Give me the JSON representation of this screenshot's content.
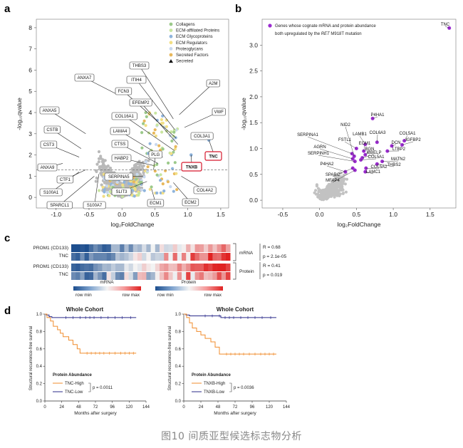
{
  "caption": "图10 间质亚型候选标志物分析",
  "panels": {
    "a": {
      "label": "a",
      "xlabel": "log₂FoldChange",
      "ylabel": "-log₁₀qvalue",
      "xticks": [
        "-1.0",
        "-0.5",
        "0.0",
        "0.5",
        "1.0",
        "1.5"
      ],
      "yticks": [
        "0",
        "1",
        "2",
        "3",
        "4",
        "5",
        "6",
        "7",
        "8"
      ],
      "legend": [
        {
          "label": "Collagens",
          "color": "#9bc98a"
        },
        {
          "label": "ECM-affiliated Proteins",
          "color": "#c9e6a0"
        },
        {
          "label": "ECM Glycoproteins",
          "color": "#8fb4dc"
        },
        {
          "label": "ECM Regulators",
          "color": "#f2df84"
        },
        {
          "label": "Proteoglycans",
          "color": "#c8d8ee"
        },
        {
          "label": "Secreted Factors",
          "color": "#e8b85c"
        },
        {
          "label": "Secreted",
          "color": "#111111"
        }
      ],
      "genes": {
        "THBS3": "THBS3",
        "ITIH4": "ITIH4",
        "FCN3": "FCN3",
        "EFEMP2": "EFEMP2",
        "COL16A1": "COL16A1",
        "LAMA4": "LAMA4",
        "CTSS": "CTSS",
        "HABP2": "HABP2",
        "PLG": "PLG",
        "SERPINA5": "SERPINA5",
        "SLIT3": "SLIT3",
        "ECM1": "ECM1",
        "ECM2": "ECM2",
        "COL4A2": "COL4A2",
        "A2M": "A2M",
        "VWF": "VWF",
        "COL3A1": "COL3A1",
        "TNC": "TNC",
        "TNXB": "TNXB",
        "ANXA7": "ANXA7",
        "ANXA5": "ANXA5",
        "CSTB": "CSTB",
        "CST3": "CST3",
        "ANXA9": "ANXA9",
        "CTF1": "CTF1",
        "S100A1": "S100A1",
        "SPARCL1": "SPARCL1",
        "S100A7": "S100A7"
      }
    },
    "b": {
      "label": "b",
      "xlabel": "log₂FoldChange",
      "ylabel": "-log₁₀qvalue",
      "xticks": [
        "-0.5",
        "0.0",
        "0.5",
        "1.0",
        "1.5"
      ],
      "yticks": [
        "0.0",
        "0.5",
        "1.0",
        "1.5",
        "2.0",
        "2.5",
        "3.0"
      ],
      "legend_line1": "Genes whose cognate mRNA and protein abundance",
      "legend_line2_pre": "both upregulated by the ",
      "legend_line2_italic": "RET",
      "legend_line2_post": " M918T mutation",
      "genes": {
        "TNC": "TNC",
        "P4HA1": "P4HA1",
        "NID2": "NID2",
        "COL5A1": "COL5A1",
        "COL6A3": "COL6A3",
        "LAMB1": "LAMB1",
        "FSTL1": "FSTL1",
        "SERPINA1": "SERPINA1",
        "ECM1": "ECM1",
        "DCN": "DCN",
        "IGFBP2": "IGFBP2",
        "BGN": "BGN",
        "LTBP2": "LTBP2",
        "AGRN": "AGRN",
        "SERPINH1": "SERPINH1",
        "IBBELP": "IBBELP",
        "COL5A1b": "COL5A1",
        "P4HA2": "P4HA2",
        "MATN2": "MATN2",
        "THBS2": "THBS2",
        "SPARC": "SPARC",
        "COL5A2": "COL5A2",
        "MFAP4": "MFAP4",
        "LAMC1": "LAMC1"
      }
    },
    "c": {
      "label": "c",
      "rows_mrna": [
        "PROM1 (CD133)",
        "TNC"
      ],
      "rows_protein": [
        "PROM1 (CD133)",
        "TNC"
      ],
      "mrna_label": "mRNA",
      "protein_label": "Protein",
      "mrna_stats": [
        "R = 0.68",
        "p = 2.1e-05"
      ],
      "protein_stats": [
        "R = 0.41",
        "p = 0.019"
      ],
      "row_min": "row min",
      "row_max": "row max",
      "scale_mrna": "mRNA",
      "scale_protein": "Protein"
    },
    "d": {
      "label": "d",
      "left": {
        "title": "Whole Cohort",
        "ylabel": "Structural recurrence-free survival",
        "xlabel": "Months after surgery",
        "xticks": [
          "0",
          "24",
          "48",
          "72",
          "96",
          "120",
          "144"
        ],
        "yticks": [
          "0.0",
          "0.2",
          "0.4",
          "0.6",
          "0.8",
          "1.0"
        ],
        "legend_title": "Protein Abundance",
        "high": "TNC-High",
        "low": "TNC-Low",
        "p": "p = 0.0011"
      },
      "right": {
        "title": "Whole Cohort",
        "ylabel": "Structural recurrence-free survival",
        "xlabel": "Months after surgery",
        "xticks": [
          "0",
          "24",
          "48",
          "72",
          "96",
          "120",
          "144"
        ],
        "yticks": [
          "0.0",
          "0.2",
          "0.4",
          "0.6",
          "0.8",
          "1.0"
        ],
        "legend_title": "Protein Abundance",
        "high": "TNXB-High",
        "low": "TNXB-Low",
        "p": "p = 0.0036"
      }
    }
  },
  "colors": {
    "high": "#f08c2c",
    "low": "#2b2b8a",
    "purple": "#9b2bd0",
    "red": "#d6182c",
    "grey": "#b8b8b8"
  }
}
